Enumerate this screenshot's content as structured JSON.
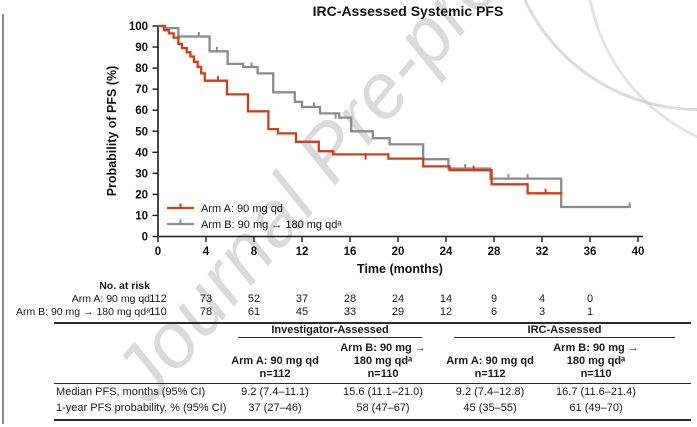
{
  "figure": {
    "watermark": "Journal Pre-proof"
  },
  "chart_data": {
    "type": "line",
    "subtype": "kaplan-meier-step",
    "title": "IRC-Assessed Systemic PFS",
    "xlabel": "Time (months)",
    "ylabel": "Probability of PFS (%)",
    "xlim": [
      0,
      40
    ],
    "ylim": [
      0,
      100
    ],
    "xticks": [
      0,
      4,
      8,
      12,
      16,
      20,
      24,
      28,
      32,
      36,
      40
    ],
    "yticks": [
      0,
      10,
      20,
      30,
      40,
      50,
      60,
      70,
      80,
      90,
      100
    ],
    "grid": false,
    "legend_position": "lower-left",
    "series": [
      {
        "name": "Arm A: 90 mg qd",
        "color": "#d43c17",
        "points": [
          [
            0,
            100
          ],
          [
            0.5,
            98
          ],
          [
            0.9,
            96.5
          ],
          [
            1.3,
            94.5
          ],
          [
            1.7,
            91.5
          ],
          [
            2.0,
            89.5
          ],
          [
            2.4,
            87.5
          ],
          [
            2.7,
            85.5
          ],
          [
            3.0,
            83
          ],
          [
            3.3,
            80.5
          ],
          [
            3.6,
            77.5
          ],
          [
            3.9,
            74
          ],
          [
            5.75,
            67.5
          ],
          [
            7.5,
            59.5
          ],
          [
            9.2,
            51
          ],
          [
            10,
            49
          ],
          [
            11.5,
            45
          ],
          [
            13.4,
            40.5
          ],
          [
            14.6,
            39
          ],
          [
            19.2,
            37
          ],
          [
            22.1,
            33.3
          ],
          [
            24.3,
            31.5
          ],
          [
            27.8,
            24.8
          ],
          [
            30.8,
            20.5
          ]
        ],
        "end": 33.7,
        "censors": [
          [
            5.0,
            74
          ],
          [
            17.3,
            37
          ],
          [
            26.3,
            31.5
          ],
          [
            32.3,
            20.5
          ]
        ]
      },
      {
        "name": "Arm B: 90 mg → 180 mg qdᵃ",
        "color": "#8c8c8c",
        "points": [
          [
            0,
            100
          ],
          [
            0.6,
            99
          ],
          [
            1.7,
            95
          ],
          [
            4.3,
            88
          ],
          [
            5.8,
            82
          ],
          [
            7.1,
            80.5
          ],
          [
            8.3,
            77.5
          ],
          [
            9.6,
            68.5
          ],
          [
            11.4,
            64
          ],
          [
            12.0,
            61.5
          ],
          [
            13.5,
            58.5
          ],
          [
            15.1,
            56.5
          ],
          [
            16.1,
            50
          ],
          [
            17.9,
            46.7
          ],
          [
            19.3,
            43.8
          ],
          [
            22.1,
            36.7
          ],
          [
            24.2,
            32.3
          ],
          [
            27.7,
            27.5
          ],
          [
            33.6,
            14
          ]
        ],
        "end": 39.4,
        "censors": [
          [
            3.4,
            95
          ],
          [
            4.9,
            88
          ],
          [
            7.8,
            80.5
          ],
          [
            13.0,
            61.5
          ],
          [
            14.8,
            56.5
          ],
          [
            25.6,
            32.3
          ],
          [
            29.2,
            27.5
          ],
          [
            30.8,
            27.5
          ],
          [
            39.3,
            14
          ]
        ]
      }
    ]
  },
  "risk_table": {
    "header": "No. at risk",
    "times": [
      0,
      4,
      8,
      12,
      16,
      20,
      24,
      28,
      32,
      36
    ],
    "rows": [
      {
        "label": "Arm A: 90 mg qd",
        "values": [
          "112",
          "73",
          "52",
          "37",
          "28",
          "24",
          "14",
          "9",
          "4",
          "0"
        ]
      },
      {
        "label": "Arm B: 90 mg → 180 mg qdᵃ",
        "values": [
          "110",
          "78",
          "61",
          "45",
          "33",
          "29",
          "12",
          "6",
          "3",
          "1"
        ]
      }
    ]
  },
  "summary_table": {
    "group_headers": [
      "Investigator-Assessed",
      "IRC-Assessed"
    ],
    "columns": [
      {
        "arm": "Arm A: 90 mg qd",
        "n": "n=112"
      },
      {
        "arm": "Arm B: 90 mg →\n180 mg qdᵃ",
        "n": "n=110"
      },
      {
        "arm": "Arm A: 90 mg qd",
        "n": "n=112"
      },
      {
        "arm": "Arm B: 90 mg →\n180 mg qdᵃ",
        "n": "n=110"
      }
    ],
    "rows": [
      {
        "label": "Median PFS, months (95% CI)",
        "values": [
          "9.2 (7.4–11.1)",
          "15.6 (11.1–21.0)",
          "9.2 (7.4–12.8)",
          "16.7 (11.6–21.4)"
        ]
      },
      {
        "label": "1-year PFS probability, % (95% CI)",
        "values": [
          "37 (27–46)",
          "58 (47–67)",
          "45 (35–55)",
          "61 (49–70)"
        ]
      }
    ]
  }
}
